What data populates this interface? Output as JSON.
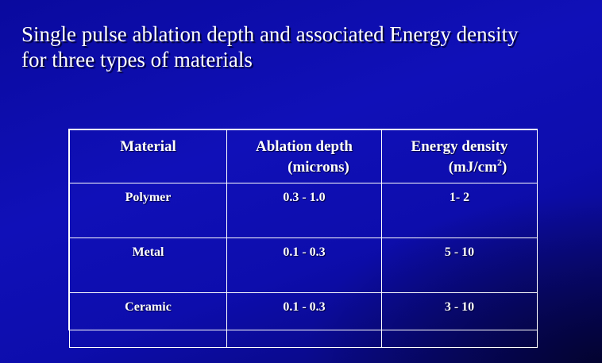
{
  "slide": {
    "title": "Single pulse ablation depth and associated Energy density\nfor three types of materials"
  },
  "table": {
    "headers": {
      "material": "Material",
      "ablation_line1": "Ablation depth",
      "ablation_line2": "(microns)",
      "energy_line1": "Energy density",
      "energy_line2_prefix": "(mJ/cm",
      "energy_line2_sup": "2",
      "energy_line2_suffix": ")"
    },
    "rows": [
      {
        "material": "Polymer",
        "ablation_depth": "0.3 - 1.0",
        "energy_density": "1- 2"
      },
      {
        "material": "Metal",
        "ablation_depth": "0.1 - 0.3",
        "energy_density": "5 - 10"
      },
      {
        "material": "Ceramic",
        "ablation_depth": "0.1 - 0.3",
        "energy_density": "3 - 10"
      }
    ]
  },
  "colors": {
    "background": "#1010b8",
    "text": "#ffffff",
    "border": "#ffffff"
  }
}
